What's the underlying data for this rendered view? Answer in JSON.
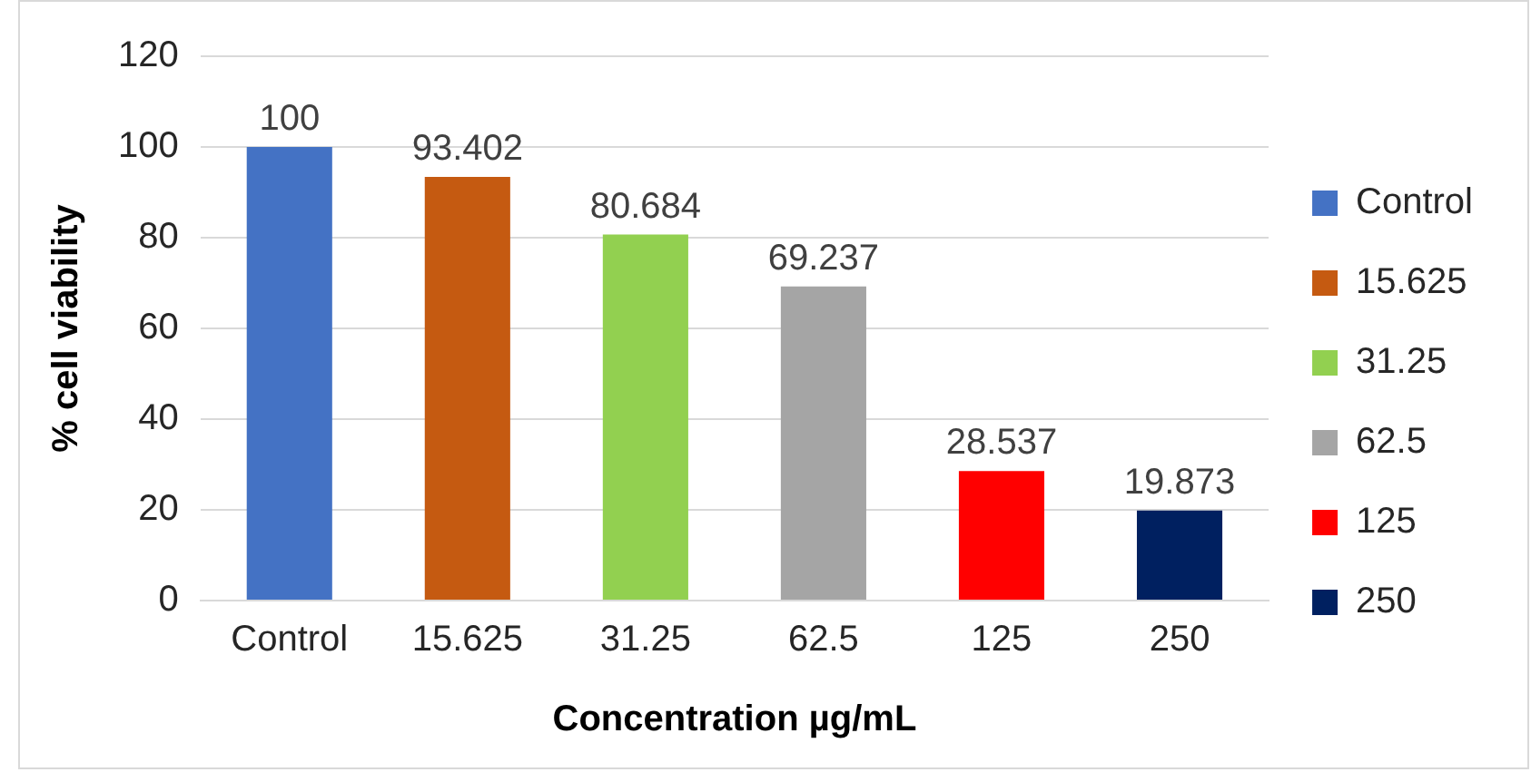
{
  "chart_data": {
    "type": "bar",
    "xlabel": "Concentration µg/mL",
    "ylabel": "% cell viability",
    "categories": [
      "Control",
      "15.625",
      "31.25",
      "62.5",
      "125",
      "250"
    ],
    "series": [
      {
        "name": "Control",
        "color": "#4472c4",
        "values": [
          100,
          null,
          null,
          null,
          null,
          null
        ]
      },
      {
        "name": "15.625",
        "color": "#c55a11",
        "values": [
          null,
          93.402,
          null,
          null,
          null,
          null
        ]
      },
      {
        "name": "31.25",
        "color": "#92d050",
        "values": [
          null,
          null,
          80.684,
          null,
          null,
          null
        ]
      },
      {
        "name": "62.5",
        "color": "#a5a5a5",
        "values": [
          null,
          null,
          null,
          69.237,
          null,
          null
        ]
      },
      {
        "name": "125",
        "color": "#ff0000",
        "values": [
          null,
          null,
          null,
          null,
          28.537,
          null
        ]
      },
      {
        "name": "250",
        "color": "#002060",
        "values": [
          null,
          null,
          null,
          null,
          null,
          19.873
        ]
      }
    ],
    "ylim": [
      0,
      120
    ],
    "yticks": [
      0,
      20,
      40,
      60,
      80,
      100,
      120
    ],
    "grid": "y",
    "legend": "right",
    "data_labels": true
  }
}
